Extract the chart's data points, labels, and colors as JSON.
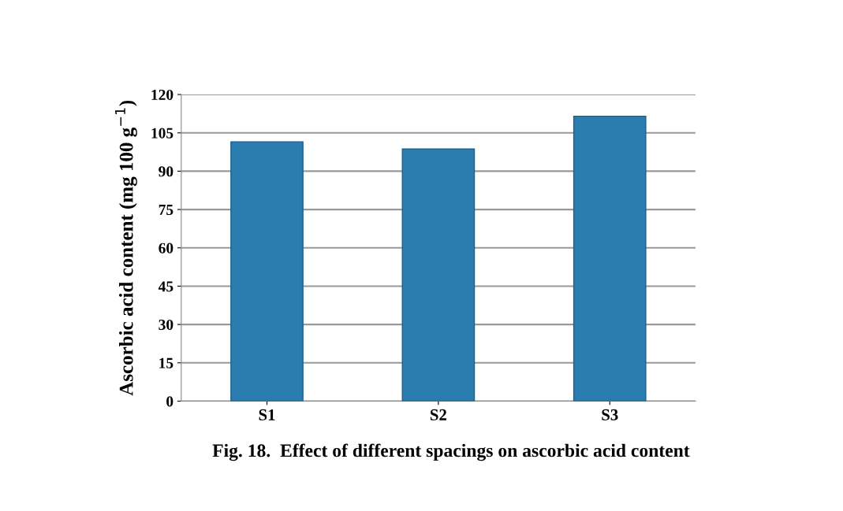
{
  "chart_data": {
    "type": "bar",
    "categories": [
      "S1",
      "S2",
      "S3"
    ],
    "values": [
      101.5,
      98.7,
      111.5
    ],
    "color": "#2b7db0",
    "ylabel": "Ascorbic acid content (mg 100 g$^{−1}$)",
    "ylim": [
      0,
      120
    ],
    "yticks": [
      0,
      15,
      30,
      45,
      60,
      75,
      90,
      105,
      120
    ],
    "grid": "y",
    "annotations": [
      "Fig. 18.  Effect of different spacings on ascorbic acid content"
    ]
  }
}
